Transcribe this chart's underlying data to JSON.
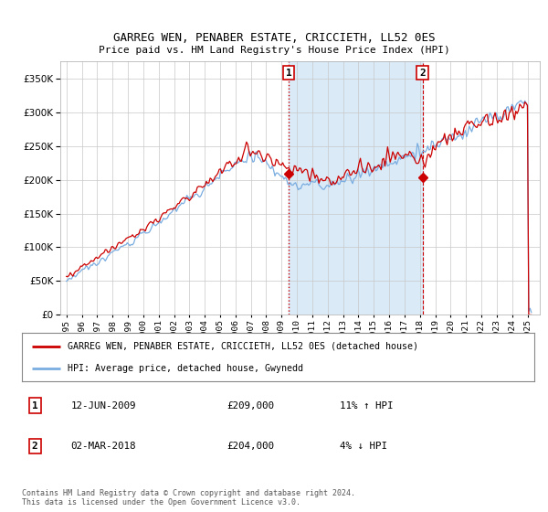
{
  "title": "GARREG WEN, PENABER ESTATE, CRICCIETH, LL52 0ES",
  "subtitle": "Price paid vs. HM Land Registry's House Price Index (HPI)",
  "ytick_values": [
    0,
    50000,
    100000,
    150000,
    200000,
    250000,
    300000,
    350000
  ],
  "ylim": [
    0,
    375000
  ],
  "xlim_start": 1994.6,
  "xlim_end": 2025.8,
  "sale1": {
    "date_num": 2009.45,
    "price": 209000,
    "label": "1"
  },
  "sale2": {
    "date_num": 2018.17,
    "price": 204000,
    "label": "2"
  },
  "legend_red": "GARREG WEN, PENABER ESTATE, CRICCIETH, LL52 0ES (detached house)",
  "legend_blue": "HPI: Average price, detached house, Gwynedd",
  "footnote1": "Contains HM Land Registry data © Crown copyright and database right 2024.",
  "footnote2": "This data is licensed under the Open Government Licence v3.0.",
  "bg_shade_start": 2009.45,
  "bg_shade_end": 2018.17,
  "red_color": "#cc0000",
  "blue_color": "#7aade0",
  "shade_color": "#daeaf7"
}
